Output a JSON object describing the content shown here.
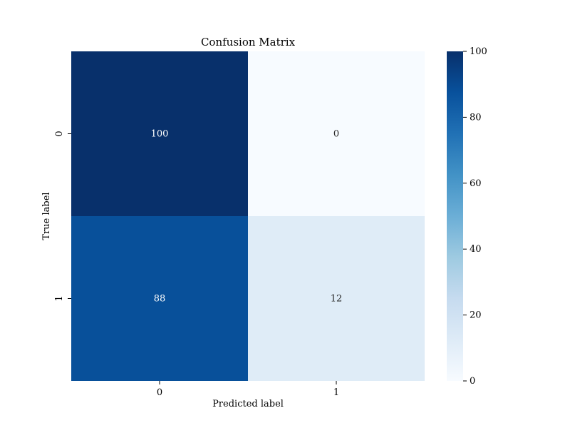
{
  "chart_data": {
    "type": "heatmap",
    "title": "Confusion Matrix",
    "xlabel": "Predicted label",
    "ylabel": "True label",
    "x_categories": [
      "0",
      "1"
    ],
    "y_categories": [
      "0",
      "1"
    ],
    "values": [
      [
        100,
        0
      ],
      [
        88,
        12
      ]
    ],
    "colormap": "Blues",
    "colorbar": {
      "min": 0,
      "max": 100,
      "ticks": [
        0,
        20,
        40,
        60,
        80,
        100
      ]
    },
    "grid": false,
    "annotated": true
  }
}
